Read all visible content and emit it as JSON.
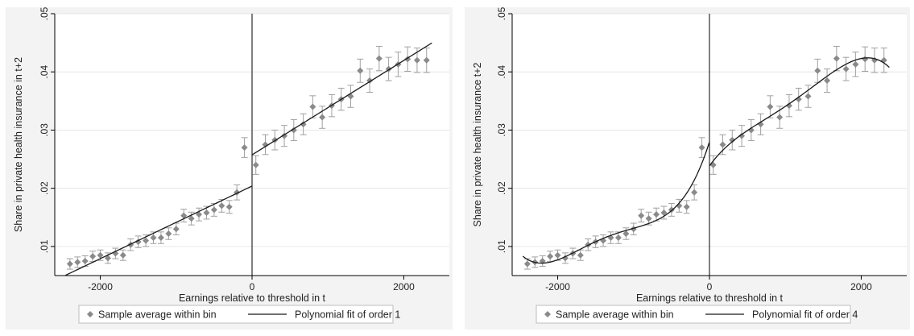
{
  "chart_data": [
    {
      "type": "scatter",
      "xlabel": "Earnings relative to threshold in t",
      "ylabel": "Share in private health insurance in t+2",
      "xlim": [
        -2600,
        2600
      ],
      "ylim": [
        0.005,
        0.05
      ],
      "xticks": [
        -2000,
        0,
        2000
      ],
      "xtick_labels": [
        "-2000",
        "0",
        "2000"
      ],
      "yticks": [
        0.01,
        0.02,
        0.03,
        0.04,
        0.05
      ],
      "ytick_labels": [
        ".01",
        ".02",
        ".03",
        ".04",
        ".05"
      ],
      "grid": true,
      "threshold_line_x": 0,
      "legend_position": "bottom",
      "legend": [
        "Sample average within bin",
        "Polynomial fit of order 1"
      ],
      "fit_order": 1,
      "points": {
        "x": [
          -2400,
          -2300,
          -2200,
          -2100,
          -2000,
          -1900,
          -1800,
          -1700,
          -1600,
          -1500,
          -1400,
          -1300,
          -1200,
          -1100,
          -1000,
          -900,
          -800,
          -700,
          -600,
          -500,
          -400,
          -300,
          -200,
          -100,
          50,
          175,
          300,
          425,
          550,
          675,
          800,
          925,
          1050,
          1175,
          1300,
          1425,
          1550,
          1675,
          1800,
          1925,
          2050,
          2175,
          2300
        ],
        "y": [
          0.007,
          0.0073,
          0.0075,
          0.0083,
          0.0085,
          0.008,
          0.0088,
          0.0085,
          0.0103,
          0.0108,
          0.011,
          0.0115,
          0.0115,
          0.0122,
          0.013,
          0.0153,
          0.0148,
          0.0155,
          0.0158,
          0.0163,
          0.017,
          0.0168,
          0.0193,
          0.027,
          0.024,
          0.0275,
          0.0283,
          0.029,
          0.03,
          0.031,
          0.034,
          0.0322,
          0.0342,
          0.0353,
          0.0358,
          0.0402,
          0.0385,
          0.0423,
          0.0405,
          0.0413,
          0.0422,
          0.042,
          0.042
        ],
        "err": [
          0.0009,
          0.0009,
          0.0009,
          0.0009,
          0.0009,
          0.0009,
          0.0009,
          0.0009,
          0.001,
          0.001,
          0.001,
          0.001,
          0.001,
          0.001,
          0.001,
          0.0011,
          0.0011,
          0.0011,
          0.0011,
          0.0011,
          0.0011,
          0.0011,
          0.0013,
          0.0017,
          0.0016,
          0.0017,
          0.0017,
          0.0018,
          0.0018,
          0.0018,
          0.0019,
          0.0019,
          0.0019,
          0.0019,
          0.0019,
          0.002,
          0.002,
          0.0021,
          0.002,
          0.0021,
          0.0021,
          0.0021,
          0.0021
        ]
      }
    },
    {
      "type": "scatter",
      "xlabel": "Earnings relative to threshold in t",
      "ylabel": "Share in private health insurance t+2",
      "xlim": [
        -2600,
        2600
      ],
      "ylim": [
        0.005,
        0.05
      ],
      "xticks": [
        -2000,
        0,
        2000
      ],
      "xtick_labels": [
        "-2000",
        "0",
        "2000"
      ],
      "yticks": [
        0.01,
        0.02,
        0.03,
        0.04,
        0.05
      ],
      "ytick_labels": [
        ".01",
        ".02",
        ".03",
        ".04",
        ".05"
      ],
      "grid": true,
      "threshold_line_x": 0,
      "legend_position": "bottom",
      "legend": [
        "Sample average within bin",
        "Polynomial fit of order 4"
      ],
      "fit_order": 4,
      "points": {
        "x": [
          -2400,
          -2300,
          -2200,
          -2100,
          -2000,
          -1900,
          -1800,
          -1700,
          -1600,
          -1500,
          -1400,
          -1300,
          -1200,
          -1100,
          -1000,
          -900,
          -800,
          -700,
          -600,
          -500,
          -400,
          -300,
          -200,
          -100,
          50,
          175,
          300,
          425,
          550,
          675,
          800,
          925,
          1050,
          1175,
          1300,
          1425,
          1550,
          1675,
          1800,
          1925,
          2050,
          2175,
          2300
        ],
        "y": [
          0.007,
          0.0073,
          0.0075,
          0.0083,
          0.0085,
          0.008,
          0.0088,
          0.0085,
          0.0103,
          0.0108,
          0.011,
          0.0115,
          0.0115,
          0.0122,
          0.013,
          0.0153,
          0.0148,
          0.0155,
          0.0158,
          0.0163,
          0.017,
          0.0168,
          0.0193,
          0.027,
          0.024,
          0.0275,
          0.0283,
          0.029,
          0.03,
          0.031,
          0.034,
          0.0322,
          0.0342,
          0.0353,
          0.0358,
          0.0402,
          0.0385,
          0.0423,
          0.0405,
          0.0413,
          0.0422,
          0.042,
          0.042
        ],
        "err": [
          0.0009,
          0.0009,
          0.0009,
          0.0009,
          0.0009,
          0.0009,
          0.0009,
          0.0009,
          0.001,
          0.001,
          0.001,
          0.001,
          0.001,
          0.001,
          0.001,
          0.0011,
          0.0011,
          0.0011,
          0.0011,
          0.0011,
          0.0011,
          0.0011,
          0.0013,
          0.0017,
          0.0016,
          0.0017,
          0.0017,
          0.0018,
          0.0018,
          0.0018,
          0.0019,
          0.0019,
          0.0019,
          0.0019,
          0.0019,
          0.002,
          0.002,
          0.0021,
          0.002,
          0.0021,
          0.0021,
          0.0021,
          0.0021
        ]
      }
    }
  ],
  "colors": {
    "background": "#ffffff",
    "plot_bg": "#ffffff",
    "grid": "#e6e6e6",
    "marker": "#8a8a8a",
    "errorbar": "#a0a0a0",
    "fit": "#1a1a1a",
    "axis": "#000000",
    "text": "#222222"
  }
}
